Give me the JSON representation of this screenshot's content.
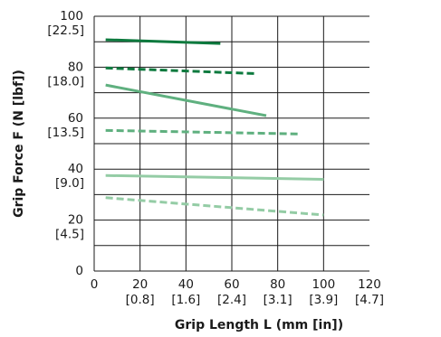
{
  "chart_data": {
    "type": "line",
    "title": "",
    "xlabel": "Grip Length  L (mm [in])",
    "ylabel": "Grip Force  F (N [lbf])",
    "xlim": [
      0,
      120
    ],
    "ylim": [
      0,
      100
    ],
    "grid": true,
    "x_ticks": [
      {
        "value": 0,
        "label": "0",
        "sub": ""
      },
      {
        "value": 20,
        "label": "20",
        "sub": "[0.8]"
      },
      {
        "value": 40,
        "label": "40",
        "sub": "[1.6]"
      },
      {
        "value": 60,
        "label": "60",
        "sub": "[2.4]"
      },
      {
        "value": 80,
        "label": "80",
        "sub": "[3.1]"
      },
      {
        "value": 100,
        "label": "100",
        "sub": "[3.9]"
      },
      {
        "value": 120,
        "label": "120",
        "sub": "[4.7]"
      }
    ],
    "y_ticks": [
      {
        "value": 0,
        "label": "0",
        "sub": ""
      },
      {
        "value": 20,
        "label": "20",
        "sub": "[4.5]"
      },
      {
        "value": 40,
        "label": "40",
        "sub": "[9.0]"
      },
      {
        "value": 60,
        "label": "60",
        "sub": "[13.5]"
      },
      {
        "value": 80,
        "label": "80",
        "sub": "[18.0]"
      },
      {
        "value": 100,
        "label": "100",
        "sub": "[22.5]"
      }
    ],
    "series": [
      {
        "color": "#0d7a3e",
        "style": "solid",
        "x": [
          5,
          55
        ],
        "values": [
          90.8,
          89.3
        ]
      },
      {
        "color": "#0d7a3e",
        "style": "dashed",
        "x": [
          5,
          70
        ],
        "values": [
          79.7,
          77.5
        ]
      },
      {
        "color": "#5fb07f",
        "style": "solid",
        "x": [
          5,
          75
        ],
        "values": [
          73.0,
          61.0
        ]
      },
      {
        "color": "#5fb07f",
        "style": "dashed",
        "x": [
          5,
          90
        ],
        "values": [
          55.2,
          53.8
        ]
      },
      {
        "color": "#94cca5",
        "style": "solid",
        "x": [
          5,
          100
        ],
        "values": [
          37.5,
          36.0
        ]
      },
      {
        "color": "#94cca5",
        "style": "dashed",
        "x": [
          5,
          100
        ],
        "values": [
          28.8,
          22.0
        ]
      }
    ],
    "colors": {
      "grid": "#1a1a1a",
      "text": "#1a1a1a"
    }
  }
}
